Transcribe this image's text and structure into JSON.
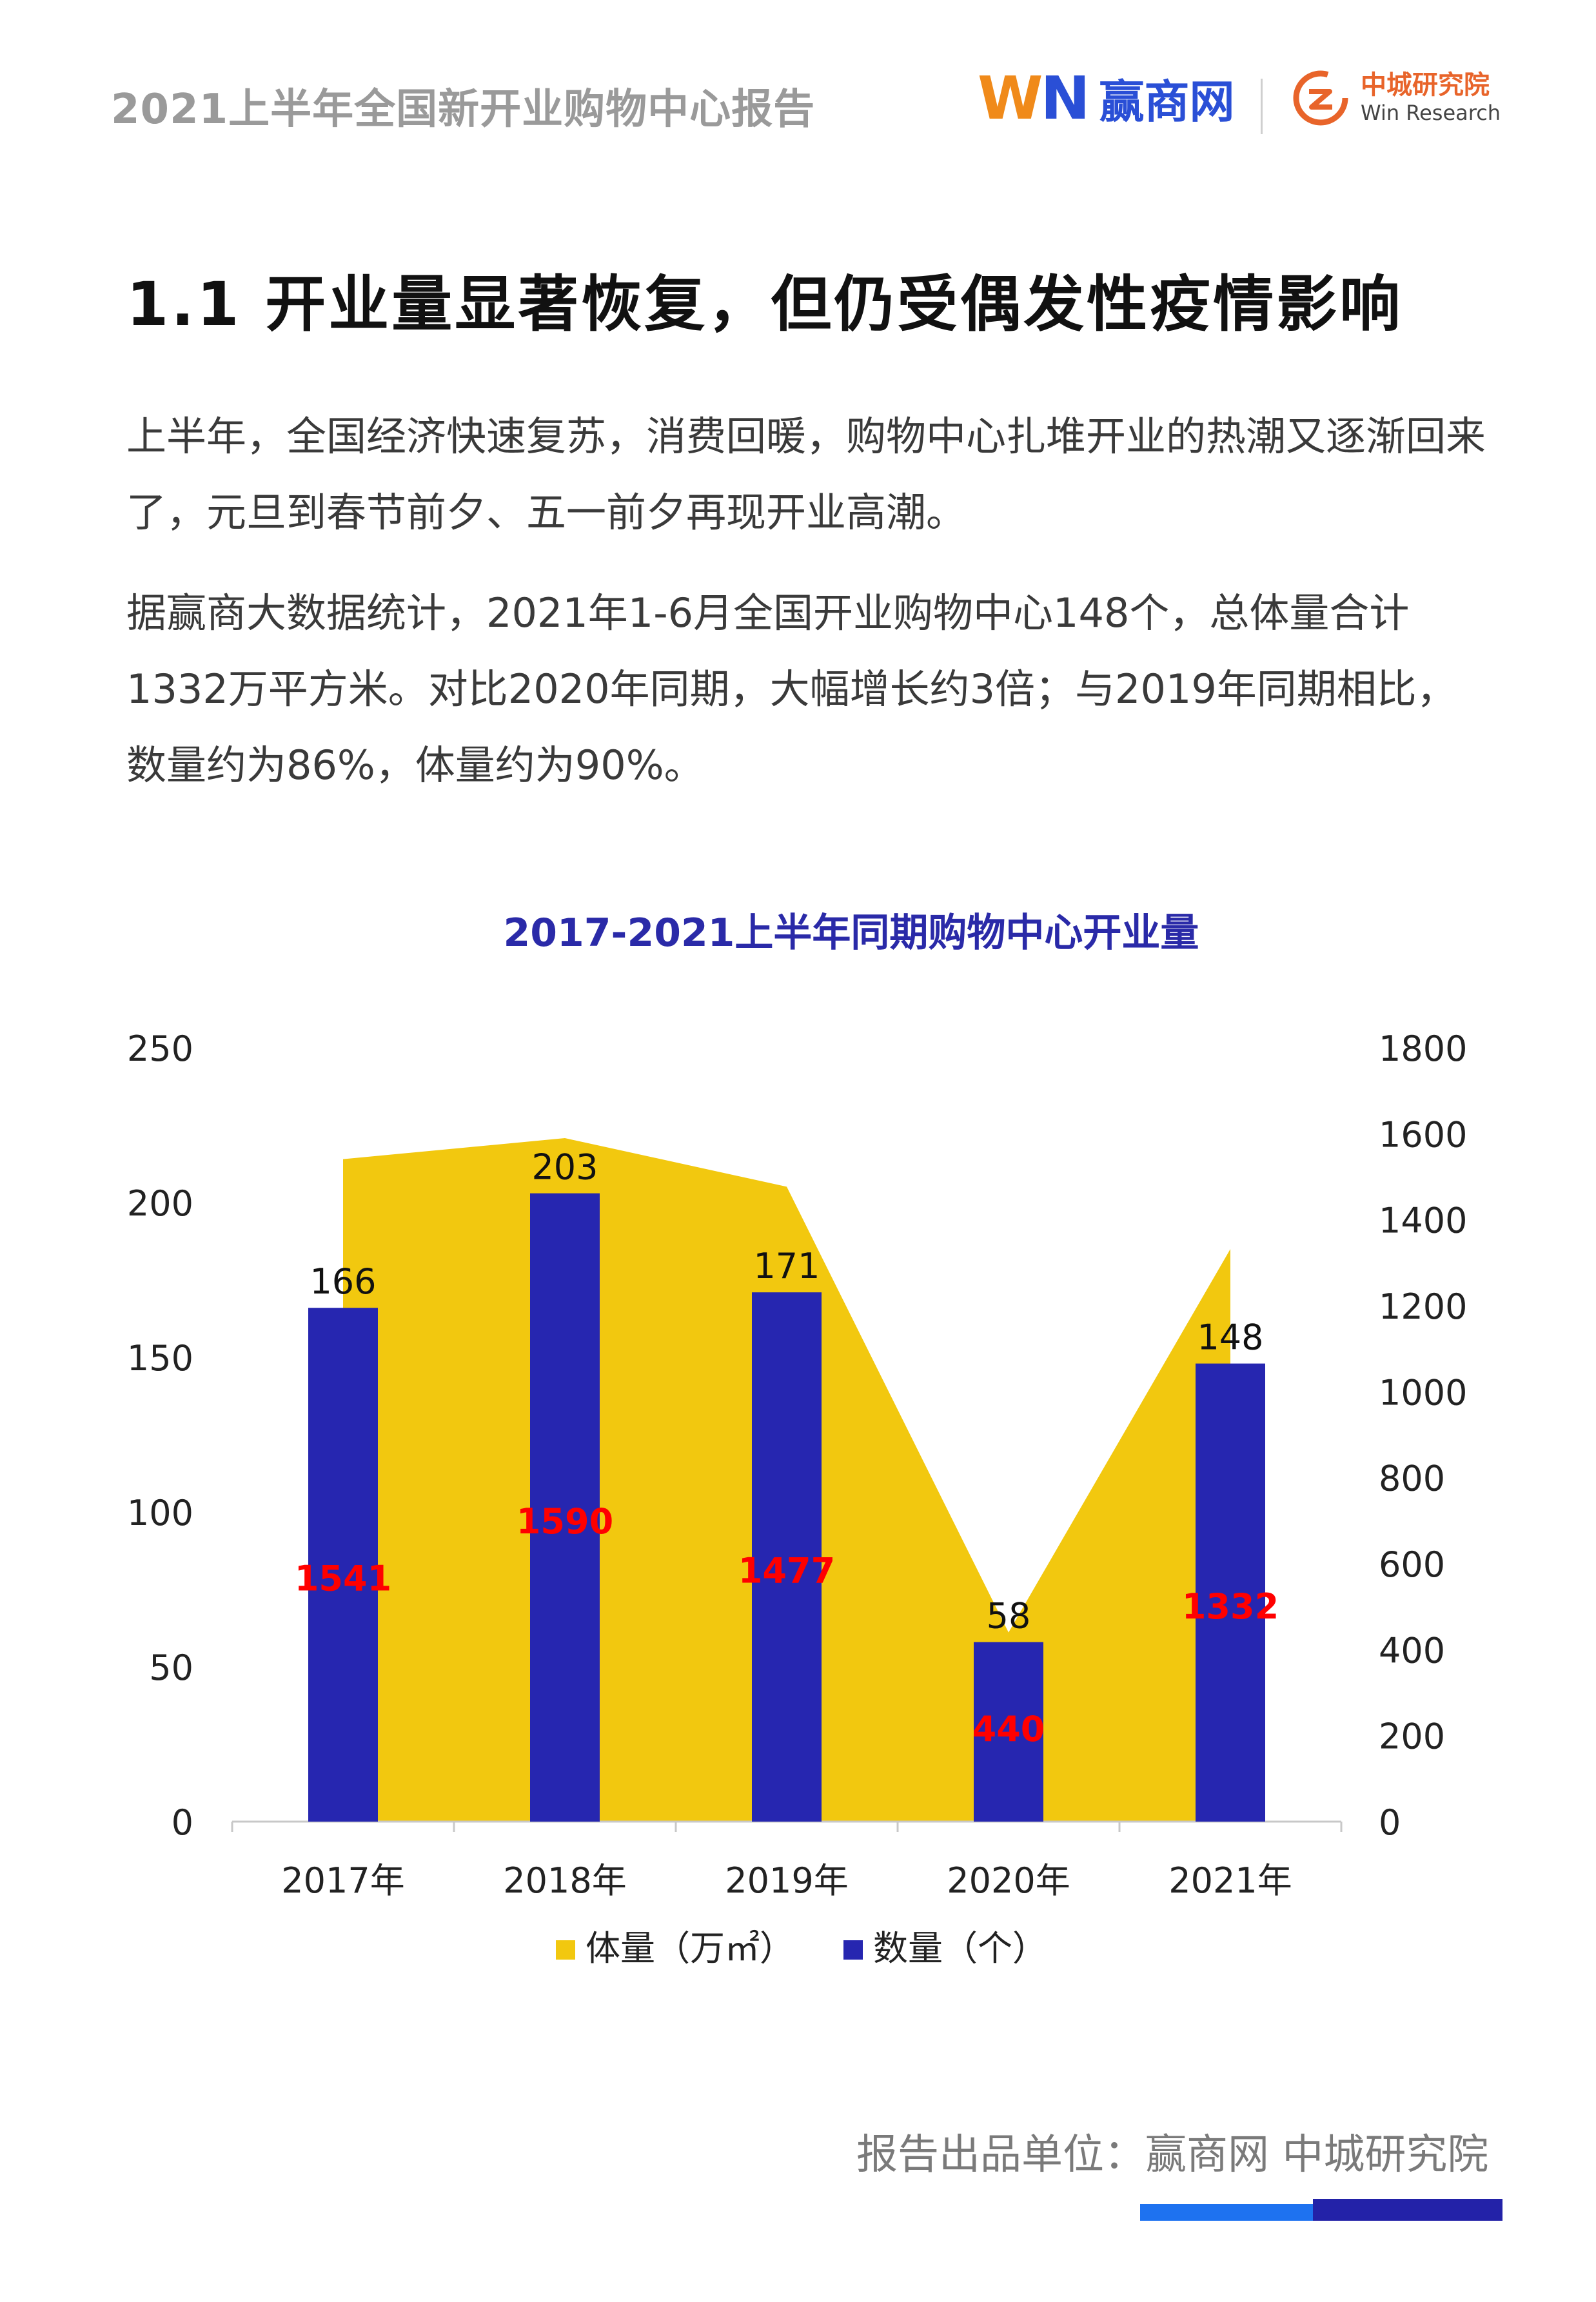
{
  "header": {
    "report_title": "2021上半年全国新开业购物中心报告",
    "logo_win_w": "W",
    "logo_win_n": "N",
    "logo_win_cn": "赢商网",
    "logo_research_cn": "中城研究院",
    "logo_research_en": "Win Research"
  },
  "section": {
    "title": "1.1 开业量显著恢复，但仍受偶发性疫情影响"
  },
  "paragraphs": [
    "上半年，全国经济快速复苏，消费回暖，购物中心扎堆开业的热潮又逐渐回来了，元旦到春节前夕、五一前夕再现开业高潮。",
    "据赢商大数据统计，2021年1-6月全国开业购物中心148个，总体量合计1332万平方米。对比2020年同期，大幅增长约3倍；与2019年同期相比，数量约为86%，体量约为90%。"
  ],
  "chart_data": {
    "type": "bar",
    "title": "2017-2021上半年同期购物中心开业量",
    "categories": [
      "2017年",
      "2018年",
      "2019年",
      "2020年",
      "2021年"
    ],
    "series": [
      {
        "name": "体量（万㎡）",
        "type": "area",
        "axis": "right",
        "values": [
          1541,
          1590,
          1477,
          440,
          1332
        ],
        "color": "#f2c80f",
        "label_color": "#ff0000"
      },
      {
        "name": "数量（个）",
        "type": "bar",
        "axis": "left",
        "values": [
          166,
          203,
          171,
          58,
          148
        ],
        "color": "#2626b0",
        "label_color": "#111111"
      }
    ],
    "y_left": {
      "min": 0,
      "max": 250,
      "ticks": [
        0,
        50,
        100,
        150,
        200,
        250
      ]
    },
    "y_right": {
      "min": 0,
      "max": 1800,
      "ticks": [
        0,
        200,
        400,
        600,
        800,
        1000,
        1200,
        1400,
        1600,
        1800
      ]
    },
    "grid": false,
    "legend": "bottom"
  },
  "footer": {
    "text": "报告出品单位：赢商网  中城研究院"
  },
  "colors": {
    "title_blue": "#2a2aa8",
    "footer_blue": "#1e72f0",
    "footer_navy": "#2322a8"
  }
}
